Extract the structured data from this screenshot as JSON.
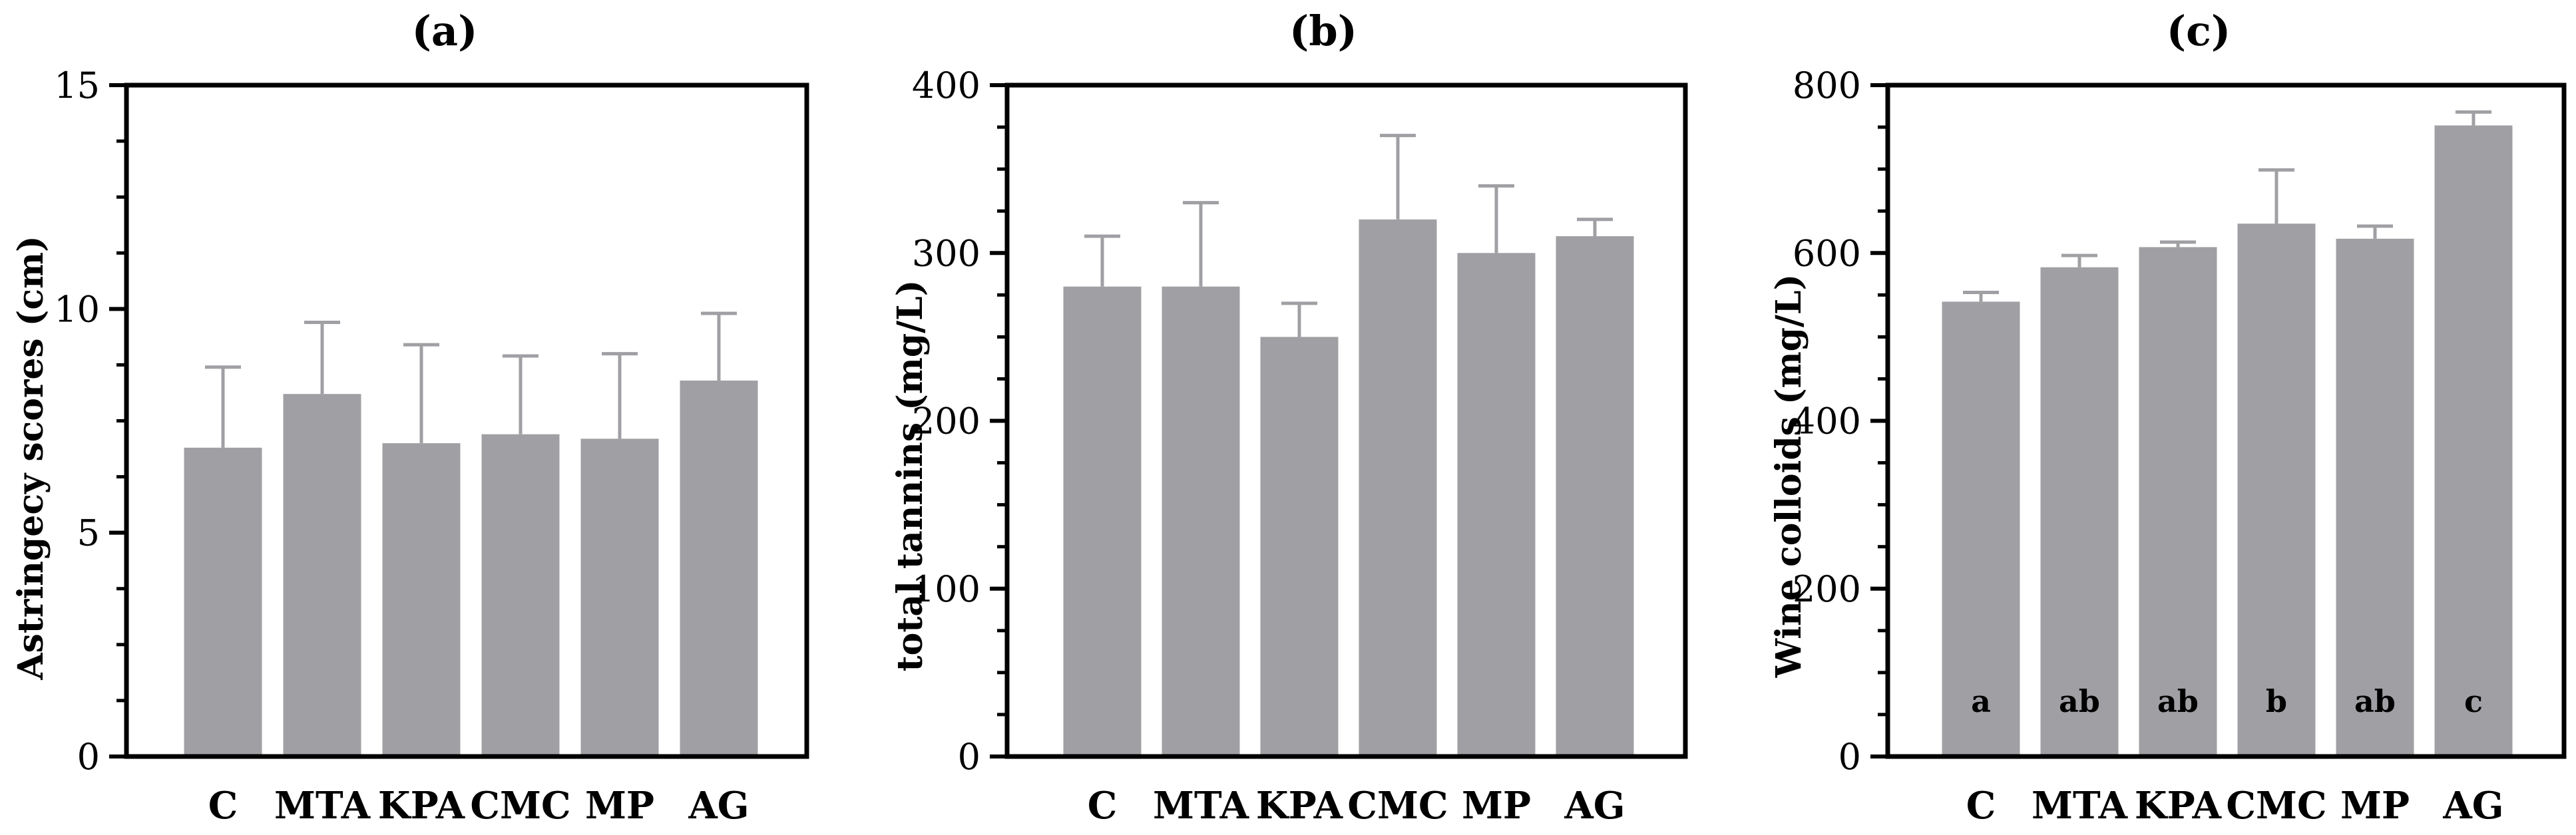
{
  "chart_data": [
    {
      "type": "bar",
      "panel": "(a)",
      "title": "(a)",
      "categories": [
        "C",
        "MTA",
        "KPA",
        "CMC",
        "MP",
        "AG"
      ],
      "values": [
        6.9,
        8.1,
        7.0,
        7.2,
        7.1,
        8.4
      ],
      "errors": [
        1.8,
        1.6,
        2.2,
        1.75,
        1.9,
        1.5
      ],
      "xlabel": "",
      "ylabel": "Astringecy scores (cm)",
      "ylim": [
        0,
        15
      ],
      "yticks": [
        0,
        5,
        10,
        15
      ],
      "minor_ticks_per_major": 4,
      "significance": [],
      "bar_color": "#a0a0a4",
      "error_color": "#a0a0a4",
      "grid": false
    },
    {
      "type": "bar",
      "panel": "(b)",
      "title": "(b)",
      "categories": [
        "C",
        "MTA",
        "KPA",
        "CMC",
        "MP",
        "AG"
      ],
      "values": [
        280,
        280,
        250,
        320,
        300,
        310
      ],
      "errors": [
        30,
        50,
        20,
        50,
        40,
        10
      ],
      "xlabel": "",
      "ylabel": "total tannins (mg/L)",
      "ylim": [
        0,
        400
      ],
      "yticks": [
        0,
        100,
        200,
        300,
        400
      ],
      "minor_ticks_per_major": 4,
      "significance": [],
      "bar_color": "#a0a0a4",
      "error_color": "#a0a0a4",
      "grid": false
    },
    {
      "type": "bar",
      "panel": "(c)",
      "title": "(c)",
      "categories": [
        "C",
        "MTA",
        "KPA",
        "CMC",
        "MP",
        "AG"
      ],
      "values": [
        542,
        583,
        607,
        635,
        617,
        752
      ],
      "errors": [
        11,
        14,
        6,
        64,
        15,
        16
      ],
      "xlabel": "",
      "ylabel": "Wine colloids (mg/L)",
      "ylim": [
        0,
        800
      ],
      "yticks": [
        0,
        200,
        400,
        600,
        800
      ],
      "minor_ticks_per_major": 4,
      "significance": [
        "a",
        "ab",
        "ab",
        "b",
        "ab",
        "c"
      ],
      "bar_color": "#a0a0a4",
      "error_color": "#a0a0a4",
      "grid": false
    }
  ]
}
